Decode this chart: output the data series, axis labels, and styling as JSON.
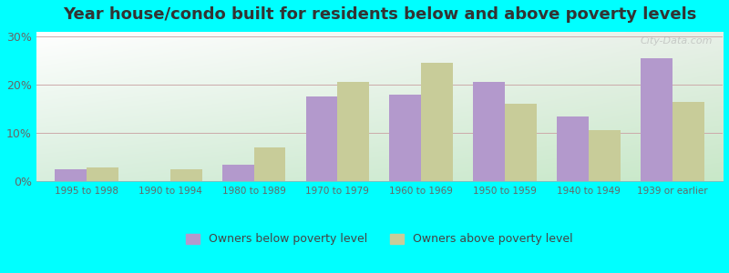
{
  "title": "Year house/condo built for residents below and above poverty levels",
  "categories": [
    "1995 to 1998",
    "1990 to 1994",
    "1980 to 1989",
    "1970 to 1979",
    "1960 to 1969",
    "1950 to 1959",
    "1940 to 1949",
    "1939 or earlier"
  ],
  "below_poverty": [
    2.5,
    0.0,
    3.5,
    17.5,
    18.0,
    20.5,
    13.5,
    25.5
  ],
  "above_poverty": [
    2.8,
    2.5,
    7.0,
    20.5,
    24.5,
    16.0,
    10.5,
    16.5
  ],
  "below_color": "#b399cc",
  "above_color": "#c8cc99",
  "grid_color": "#ccaaaa",
  "ylabel_ticks": [
    "0%",
    "10%",
    "20%",
    "30%"
  ],
  "ytick_vals": [
    0,
    10,
    20,
    30
  ],
  "ylim": [
    0,
    31
  ],
  "legend_below": "Owners below poverty level",
  "legend_above": "Owners above poverty level",
  "outer_bg": "#00ffff",
  "watermark": "City-Data.com",
  "title_fontsize": 13,
  "bar_width": 0.38,
  "figsize": [
    8.0,
    3.0
  ],
  "dpi": 100,
  "bg_topleft": "#ffffff",
  "bg_topright": "#e8f0e8",
  "bg_bottomleft": "#d8eedd",
  "bg_bottomright": "#c8e8c8"
}
